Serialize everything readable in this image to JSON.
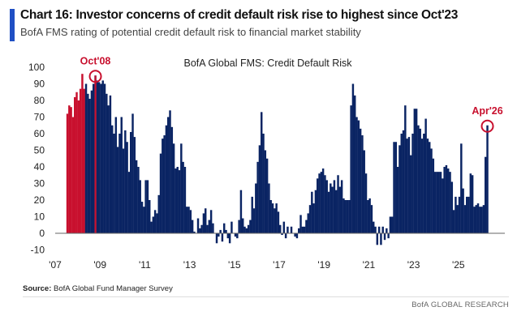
{
  "header": {
    "title": "Chart 16: Investor concerns of credit default risk rise to highest since Oct'23",
    "subtitle": "BofA FMS rating of potential credit default risk to financial market stability"
  },
  "footer": {
    "source_label": "Source:",
    "source_text": " BofA Global Fund Manager Survey",
    "brand": "BofA GLOBAL RESEARCH"
  },
  "colors": {
    "bar": "#0a2463",
    "highlight": "#c8102e",
    "accent": "#1f4fc4"
  },
  "chart_data": {
    "type": "bar",
    "title": "BofA Global FMS: Credit Default Risk",
    "xlabel": "",
    "ylabel": "",
    "ylim": [
      -10,
      100
    ],
    "yticks": [
      "100",
      "90",
      "80",
      "70",
      "60",
      "50",
      "40",
      "30",
      "20",
      "10",
      "0",
      "-10"
    ],
    "xticks": [
      {
        "label": "'07",
        "year": 2007
      },
      {
        "label": "'09",
        "year": 2009
      },
      {
        "label": "'11",
        "year": 2011
      },
      {
        "label": "'13",
        "year": 2013
      },
      {
        "label": "'15",
        "year": 2015
      },
      {
        "label": "'17",
        "year": 2017
      },
      {
        "label": "'19",
        "year": 2019
      },
      {
        "label": "'21",
        "year": 2021
      },
      {
        "label": "'23",
        "year": 2023
      },
      {
        "label": "'25",
        "year": 2025
      }
    ],
    "start": "2007-07",
    "frequency": "monthly",
    "highlight_months": [
      "2007-07",
      "2007-08",
      "2007-09",
      "2007-10",
      "2007-11",
      "2007-12",
      "2008-01",
      "2008-02",
      "2008-03",
      "2008-04",
      "2008-10"
    ],
    "annotations": [
      {
        "label": "Oct'08",
        "date": "2008-10"
      },
      {
        "label": "Apr'26",
        "date": "2026-04"
      }
    ],
    "values": [
      72,
      77,
      76,
      70,
      82,
      85,
      80,
      87,
      96,
      87,
      90,
      84,
      81,
      86,
      90,
      95,
      92,
      91,
      90,
      92,
      90,
      84,
      77,
      83,
      65,
      60,
      70,
      52,
      60,
      70,
      51,
      62,
      55,
      37,
      61,
      72,
      58,
      44,
      40,
      32,
      19,
      16,
      32,
      32,
      20,
      7,
      10,
      14,
      12,
      23,
      48,
      57,
      59,
      65,
      70,
      74,
      64,
      54,
      39,
      40,
      38,
      54,
      43,
      40,
      16,
      16,
      14,
      8,
      1,
      0,
      9,
      3,
      5,
      12,
      15,
      5,
      8,
      14,
      6,
      0,
      -6,
      -2,
      2,
      -5,
      6,
      2,
      -3,
      -6,
      7,
      0,
      -2,
      -3,
      8,
      26,
      9,
      4,
      3,
      5,
      8,
      22,
      15,
      30,
      43,
      53,
      73,
      60,
      50,
      45,
      30,
      20,
      18,
      15,
      18,
      13,
      5,
      -1,
      7,
      -3,
      4,
      0,
      4,
      0,
      -2,
      -3,
      3,
      11,
      4,
      4,
      8,
      12,
      17,
      25,
      18,
      26,
      33,
      36,
      37,
      39,
      35,
      32,
      25,
      30,
      28,
      32,
      26,
      35,
      28,
      32,
      21,
      20,
      20,
      20,
      77,
      90,
      83,
      70,
      68,
      63,
      59,
      50,
      36,
      20,
      21,
      17,
      7,
      4,
      -7,
      4,
      -7,
      4,
      -4,
      3,
      -3,
      10,
      10,
      55,
      55,
      40,
      53,
      60,
      62,
      77,
      57,
      58,
      47,
      60,
      75,
      75,
      65,
      63,
      57,
      60,
      69,
      57,
      55,
      51,
      45,
      37,
      37,
      37,
      37,
      33,
      40,
      41,
      39,
      37,
      31,
      14,
      22,
      17,
      22,
      54,
      27,
      17,
      22,
      22,
      36,
      35,
      16,
      17,
      18,
      16,
      16,
      17,
      46,
      65
    ]
  }
}
